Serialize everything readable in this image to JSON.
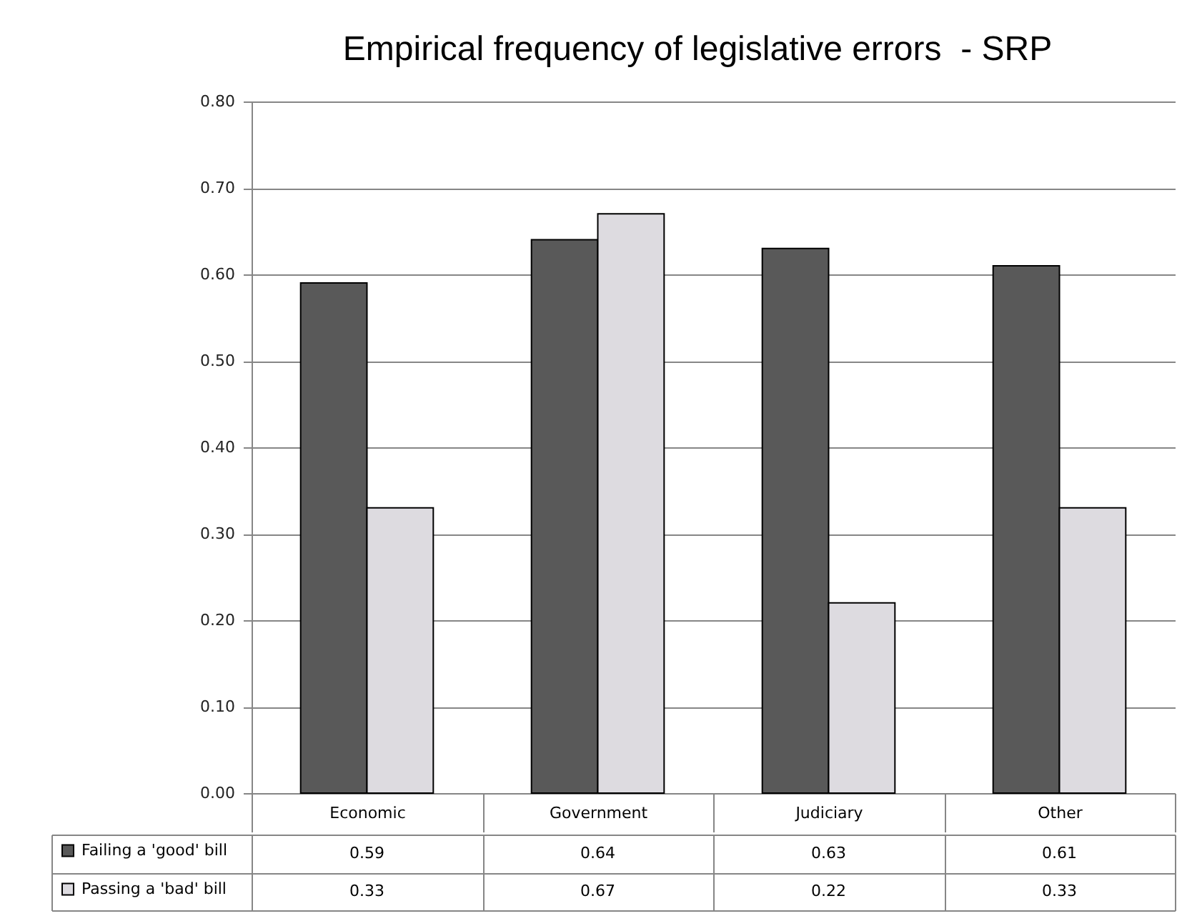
{
  "chart_data": {
    "type": "bar",
    "title": "Empirical frequency of legislative errors  - SRP",
    "categories": [
      "Economic",
      "Government",
      "Judiciary",
      "Other"
    ],
    "series": [
      {
        "name": "Failing a 'good' bill",
        "color": "#595959",
        "values": [
          0.59,
          0.64,
          0.63,
          0.61
        ]
      },
      {
        "name": "Passing a 'bad' bill",
        "color": "#dddbe0",
        "values": [
          0.33,
          0.67,
          0.22,
          0.33
        ]
      }
    ],
    "ylim": [
      0,
      0.8
    ],
    "yticks": [
      {
        "value": 0,
        "label": "0.00"
      },
      {
        "value": 0.1,
        "label": "0.10"
      },
      {
        "value": 0.2,
        "label": "0.20"
      },
      {
        "value": 0.3,
        "label": "0.30"
      },
      {
        "value": 0.4,
        "label": "0.40"
      },
      {
        "value": 0.5,
        "label": "0.50"
      },
      {
        "value": 0.6,
        "label": "0.60"
      },
      {
        "value": 0.7,
        "label": "0.70"
      },
      {
        "value": 0.8,
        "label": "0.80"
      }
    ],
    "grid": "y",
    "legend": "bottom left",
    "data_labels": true
  }
}
